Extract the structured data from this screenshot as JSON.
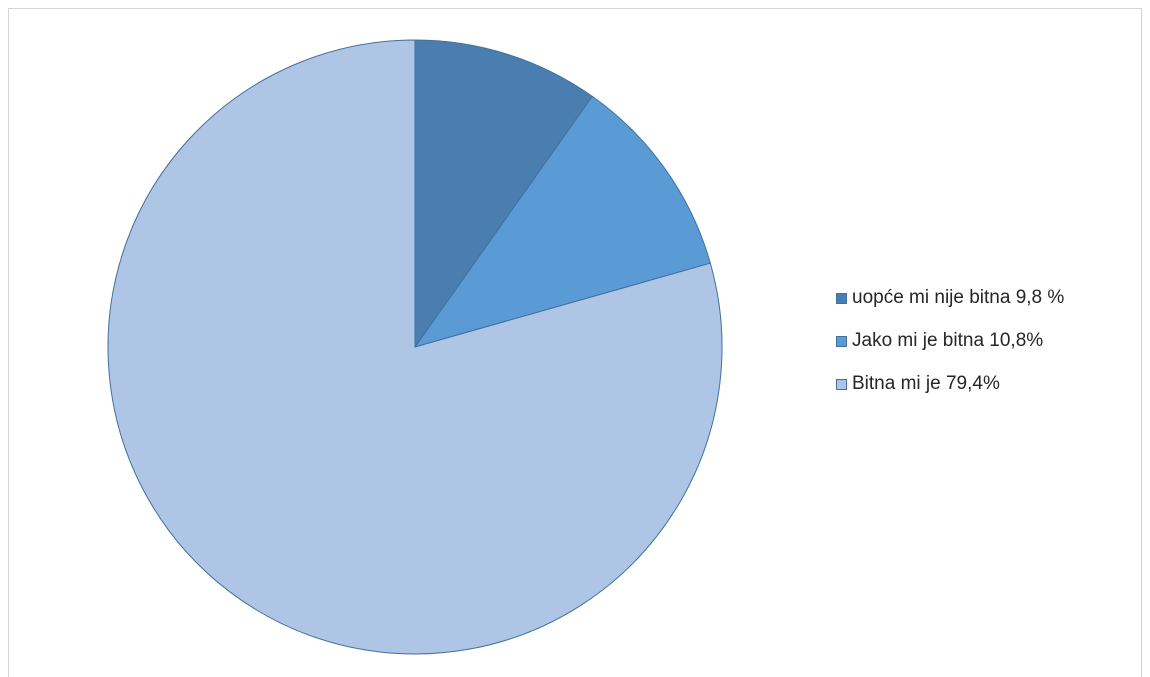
{
  "chart_data": {
    "type": "pie",
    "title": "",
    "start_angle_deg": 0,
    "direction": "clockwise",
    "slices": [
      {
        "label": "uopće mi nije bitna 9,8 %",
        "value": 9.8,
        "color": "#4a7eb0"
      },
      {
        "label": "Jako mi je bitna 10,8%",
        "value": 10.8,
        "color": "#5b9bd5"
      },
      {
        "label": "Bitna mi je 79,4%",
        "value": 79.4,
        "color": "#aec5e6"
      }
    ],
    "legend_position": "right",
    "slice_border_color": "#41719c"
  }
}
